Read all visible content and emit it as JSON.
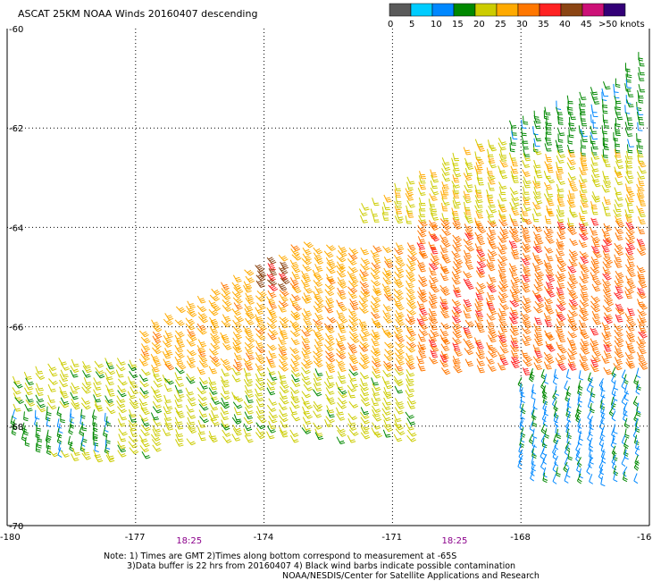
{
  "chart_data": {
    "type": "wind-barb",
    "title": "ASCAT 25KM NOAA Winds 20160407 descending",
    "x_ticks": [
      "-180",
      "-177",
      "-174",
      "-171",
      "-168",
      "-16"
    ],
    "y_ticks": [
      "-60",
      "-62",
      "-64",
      "-66",
      "-68",
      "-70"
    ],
    "xlim": [
      -180,
      -165
    ],
    "ylim": [
      -70,
      -60
    ],
    "grid": true,
    "legend_placement": "top-right",
    "colorbar": {
      "labels": [
        "0",
        "5",
        "10",
        "15",
        "20",
        "25",
        "30",
        "35",
        "40",
        "45",
        ">50 knots"
      ],
      "colors": [
        "#5a5a5a",
        "#00ccff",
        "#0088ff",
        "#008800",
        "#cccc00",
        "#ffaa00",
        "#ff7700",
        "#ff2222",
        "#8b4513",
        "#cc1177",
        "#330077"
      ]
    },
    "time_labels": [
      {
        "lon": -175.8,
        "text": "18:25"
      },
      {
        "lon": -169.6,
        "text": "18:25"
      }
    ],
    "swath": {
      "north_edge": [
        [
          -180,
          -67.0
        ],
        [
          -177,
          -66.0
        ],
        [
          -174,
          -64.6
        ],
        [
          -171,
          -63.1
        ],
        [
          -168,
          -61.7
        ],
        [
          -166,
          -61.0
        ],
        [
          -165,
          -60.2
        ]
      ],
      "south_edge": [
        [
          -180,
          -68.0
        ],
        [
          -178,
          -69.1
        ],
        [
          -176.5,
          -68.4
        ],
        [
          -174,
          -68.2
        ],
        [
          -171,
          -68.2
        ],
        [
          -169,
          -68.4
        ],
        [
          -167.5,
          -69.0
        ],
        [
          -165,
          -69.0
        ]
      ]
    },
    "wind_zones": [
      {
        "name": "west_yellow",
        "lon": [
          -180,
          -176.5
        ],
        "lat": [
          -68.6,
          -66.6
        ],
        "speed_kt": 22,
        "dir_deg": 300
      },
      {
        "name": "south_yellow",
        "lon": [
          -176.5,
          -170.5
        ],
        "lat": [
          -68.3,
          -66.8
        ],
        "speed_kt": 22,
        "dir_deg": 300
      },
      {
        "name": "central_orange",
        "lon": [
          -177.0,
          -168.5
        ],
        "lat": [
          -66.8,
          -64.3
        ],
        "speed_kt": 28,
        "dir_deg": 305
      },
      {
        "name": "magenta_core",
        "lon": [
          -174.4,
          -173.4
        ],
        "lat": [
          -65.2,
          -64.6
        ],
        "speed_kt": 42,
        "dir_deg": 305
      },
      {
        "name": "red_east",
        "lon": [
          -170.5,
          -165.2
        ],
        "lat": [
          -66.8,
          -63.8
        ],
        "speed_kt": 33,
        "dir_deg": 300
      },
      {
        "name": "north_yellow",
        "lon": [
          -172.0,
          -165.0
        ],
        "lat": [
          -63.8,
          -62.2
        ],
        "speed_kt": 24,
        "dir_deg": 290
      },
      {
        "name": "green_ne",
        "lon": [
          -168.5,
          -165.0
        ],
        "lat": [
          -62.4,
          -60.2
        ],
        "speed_kt": 17,
        "dir_deg": 280
      },
      {
        "name": "green_blue_se",
        "lon": [
          -168.2,
          -165.0
        ],
        "lat": [
          -69.0,
          -66.8
        ],
        "speed_kt": 14,
        "dir_deg": 250
      },
      {
        "name": "green_sw",
        "lon": [
          -180,
          -177.5
        ],
        "lat": [
          -68.4,
          -67.6
        ],
        "speed_kt": 16,
        "dir_deg": 260
      }
    ]
  },
  "notes": {
    "line1": "Note:  1) Times are GMT  2)Times along bottom correspond to measurement at -65S",
    "line2": "3)Data buffer is 22 hrs from 20160407  4) Black wind barbs indicate possible contamination",
    "line3": "NOAA/NESDIS/Center for Satellite Applications and Research"
  }
}
